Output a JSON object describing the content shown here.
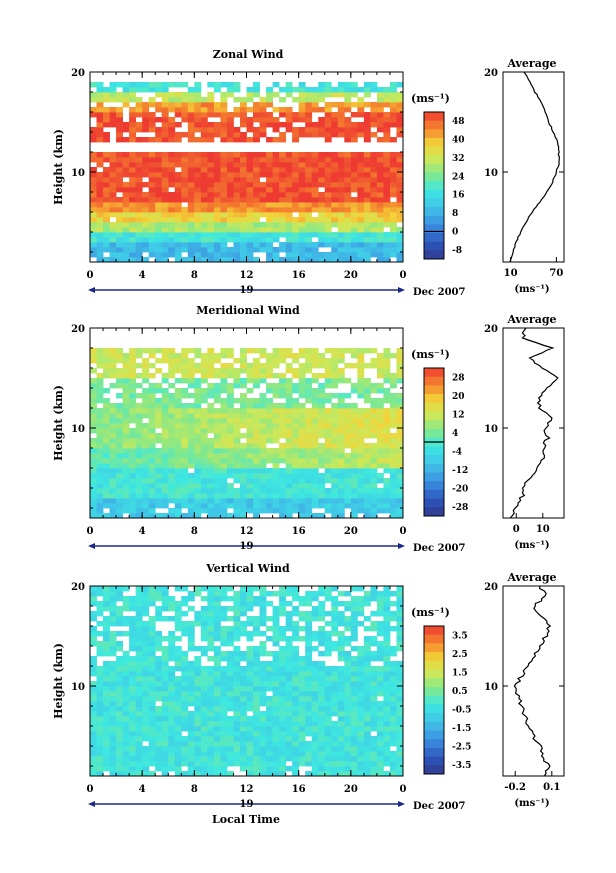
{
  "figure": {
    "xlabel": "Local Time",
    "date_label": "Dec 2007",
    "day_label": "19",
    "ylabel": "Height (km)",
    "average_title": "Average",
    "unit_label": "(ms⁻¹)"
  },
  "chart_data": [
    {
      "type": "heatmap",
      "id": "zonal",
      "title": "Zonal Wind",
      "x_ticks": [
        "0",
        "4",
        "8",
        "12",
        "16",
        "20",
        "0"
      ],
      "xlim": [
        0,
        24
      ],
      "y_ticks": [
        "10",
        "20"
      ],
      "ylim": [
        1,
        20
      ],
      "colorbar": {
        "unit": "(ms⁻¹)",
        "ticks": [
          "48",
          "40",
          "32",
          "24",
          "16",
          "8",
          "0",
          "-8"
        ],
        "range": [
          -8,
          52
        ],
        "zero_line": 0
      },
      "layers": [
        {
          "z0": 1,
          "z1": 3,
          "value": 12
        },
        {
          "z0": 3,
          "z1": 4,
          "value": 20
        },
        {
          "z0": 4,
          "z1": 5,
          "value": 30
        },
        {
          "z0": 5,
          "z1": 6,
          "value": 38
        },
        {
          "z0": 6,
          "z1": 7,
          "value": 44
        },
        {
          "z0": 7,
          "z1": 12,
          "value": 50
        },
        {
          "z0": 13,
          "z1": 16,
          "value": 50
        },
        {
          "z0": 16,
          "z1": 17,
          "value": 44
        },
        {
          "z0": 17,
          "z1": 18,
          "value": 32
        },
        {
          "z0": 18,
          "z1": 19,
          "value": 20
        }
      ],
      "average": {
        "x_ticks": [
          "10",
          "70"
        ],
        "xlim": [
          0,
          80
        ],
        "height": [
          1,
          2,
          3,
          4,
          5,
          6,
          7,
          8,
          9,
          10,
          11,
          12,
          13,
          14,
          15,
          16,
          17,
          18,
          19,
          20
        ],
        "value": [
          10,
          13,
          17,
          23,
          30,
          38,
          48,
          58,
          65,
          70,
          74,
          73,
          72,
          66,
          60,
          56,
          50,
          42,
          35,
          28
        ]
      }
    },
    {
      "type": "heatmap",
      "id": "meridional",
      "title": "Meridional Wind",
      "x_ticks": [
        "0",
        "4",
        "8",
        "12",
        "16",
        "20",
        "0"
      ],
      "xlim": [
        0,
        24
      ],
      "y_ticks": [
        "10",
        "20"
      ],
      "ylim": [
        1,
        20
      ],
      "colorbar": {
        "unit": "(ms⁻¹)",
        "ticks": [
          "28",
          "20",
          "12",
          "4",
          "-4",
          "-12",
          "-20",
          "-28"
        ],
        "range": [
          -32,
          32
        ],
        "zero_line": 0
      },
      "layers": [
        {
          "z0": 1,
          "z1": 3,
          "value": -8
        },
        {
          "z0": 3,
          "z1": 6,
          "value": -2
        },
        {
          "z0": 6,
          "z1": 8,
          "value": 6
        },
        {
          "z0": 8,
          "z1": 12,
          "value": 10
        },
        {
          "z0": 12,
          "z1": 15,
          "value": 4
        },
        {
          "z0": 15,
          "z1": 18,
          "value": 12
        }
      ],
      "average": {
        "x_ticks": [
          "0",
          "10"
        ],
        "xlim": [
          -5,
          18
        ],
        "height": [
          1,
          2,
          3,
          4,
          5,
          6,
          7,
          8,
          9,
          10,
          11,
          12,
          13,
          14,
          15,
          16,
          17,
          18,
          19,
          20
        ],
        "value": [
          -2,
          0,
          2,
          3,
          5,
          8,
          10,
          10,
          12,
          11,
          13,
          9,
          8,
          12,
          16,
          10,
          5,
          14,
          2,
          4
        ]
      }
    },
    {
      "type": "heatmap",
      "id": "vertical",
      "title": "Vertical Wind",
      "x_ticks": [
        "0",
        "4",
        "8",
        "12",
        "16",
        "20",
        "0"
      ],
      "xlim": [
        0,
        24
      ],
      "y_ticks": [
        "10",
        "20"
      ],
      "ylim": [
        1,
        20
      ],
      "colorbar": {
        "unit": "(ms⁻¹)",
        "ticks": [
          "3.5",
          "2.5",
          "1.5",
          "0.5",
          "-0.5",
          "-1.5",
          "-2.5",
          "-3.5"
        ],
        "range": [
          -4,
          4
        ],
        "zero_line": null
      },
      "layers": [
        {
          "z0": 1,
          "z1": 20,
          "value": -0.3
        }
      ],
      "average": {
        "x_ticks": [
          "-0.2",
          "0.1"
        ],
        "xlim": [
          -0.3,
          0.2
        ],
        "height": [
          1,
          2,
          3,
          4,
          5,
          6,
          7,
          8,
          9,
          10,
          11,
          12,
          13,
          14,
          15,
          16,
          17,
          18,
          19,
          20
        ],
        "value": [
          0.05,
          0.07,
          0.02,
          0.0,
          -0.05,
          -0.1,
          -0.12,
          -0.15,
          -0.18,
          -0.2,
          -0.15,
          -0.1,
          -0.05,
          0.0,
          0.05,
          0.08,
          0.02,
          -0.05,
          0.05,
          0.0
        ]
      }
    }
  ]
}
